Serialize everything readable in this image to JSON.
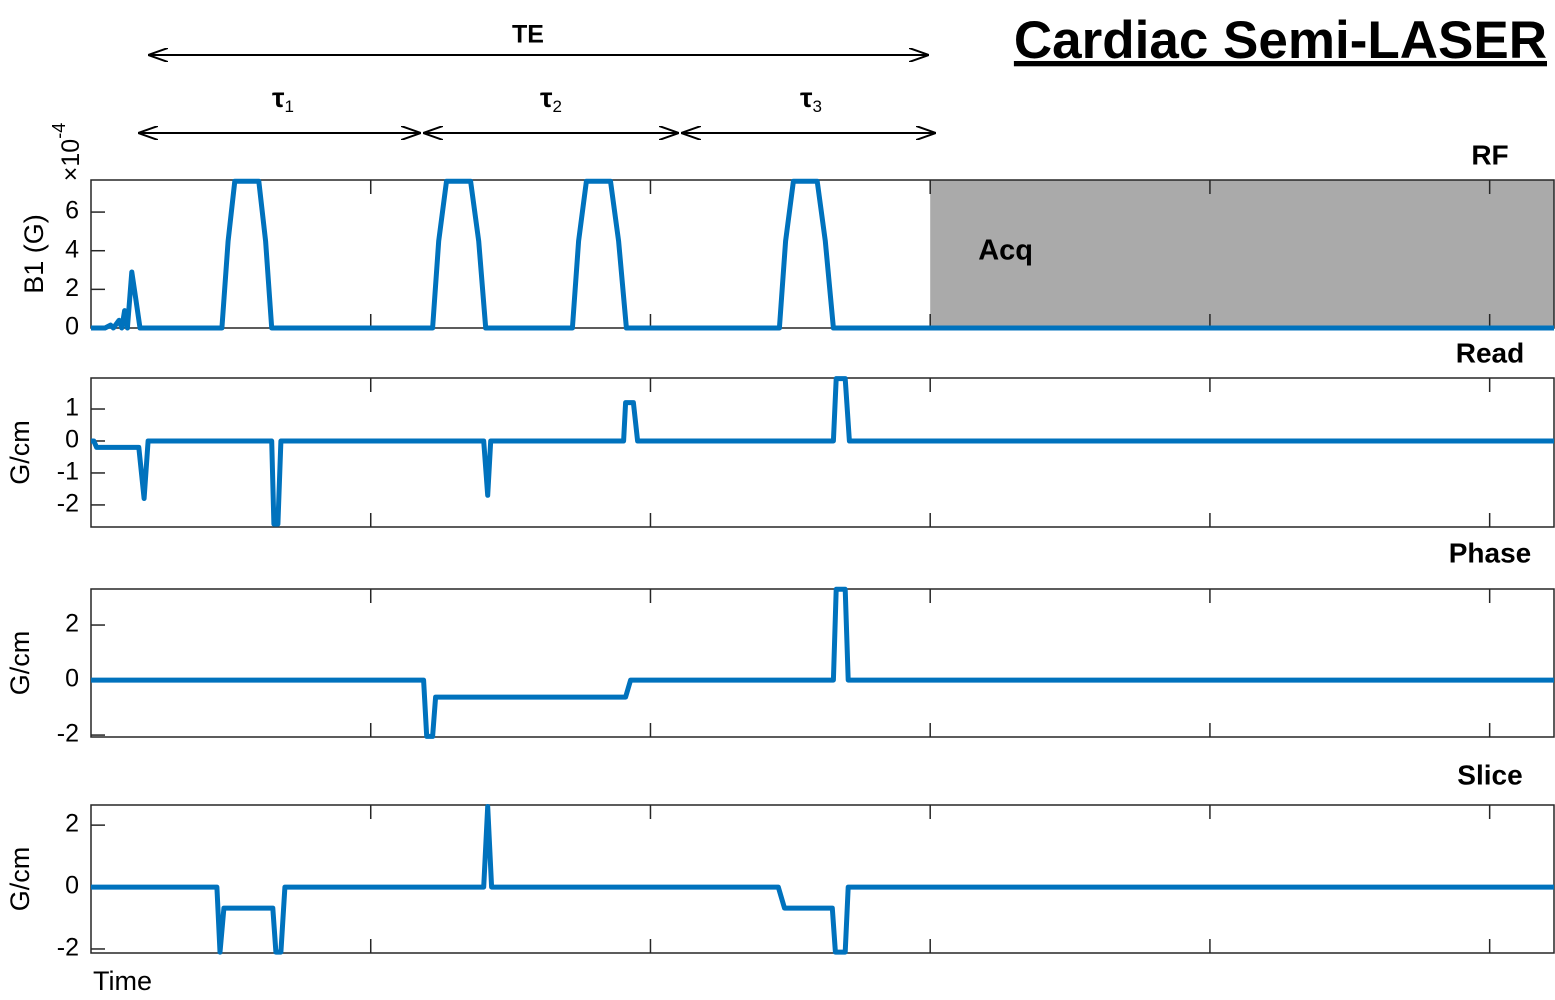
{
  "chart_data": [
    {
      "type": "line",
      "title": "Cardiac Semi-LASER",
      "te_label": "TE",
      "intervals": [
        {
          "symbol": "τ",
          "subscript": "1"
        },
        {
          "symbol": "τ",
          "subscript": "2"
        },
        {
          "symbol": "τ",
          "subscript": "3"
        }
      ],
      "panel_label": "RF",
      "ylabel": "B1 (G)",
      "y_multiplier": {
        "base": "×10",
        "exponent": "-4"
      },
      "span": {
        "label": "Acq",
        "start": 3,
        "end": 5.23,
        "color": "#aaaaaa"
      },
      "color": "#0072bd",
      "x": [
        0,
        0.05,
        0.07,
        0.08,
        0.1,
        0.11,
        0.12,
        0.13,
        0.146,
        0.16,
        0.175,
        0.468,
        0.49,
        0.514,
        0.6,
        0.624,
        0.646,
        1.221,
        1.243,
        1.271,
        1.357,
        1.386,
        1.411,
        1.721,
        1.743,
        1.771,
        1.857,
        1.886,
        1.914,
        2.461,
        2.483,
        2.511,
        2.596,
        2.625,
        2.654,
        5.23
      ],
      "values": [
        0,
        0,
        0.15,
        0,
        0.4,
        0,
        0.9,
        0,
        2.9,
        1.5,
        0,
        0,
        4.5,
        7.6,
        7.6,
        4.5,
        0,
        0,
        4.5,
        7.6,
        7.6,
        4.5,
        0,
        0,
        4.5,
        7.6,
        7.6,
        4.5,
        0,
        0,
        4.5,
        7.6,
        7.6,
        4.5,
        0,
        0
      ],
      "xlim": [
        0,
        5.23
      ],
      "xticks": [
        1,
        2,
        3,
        4,
        5
      ],
      "ylim": [
        0,
        7.66
      ],
      "yticks": [
        0,
        2,
        4,
        6
      ]
    },
    {
      "type": "line",
      "panel_label": "Read",
      "ylabel": "G/cm",
      "color": "#0072bd",
      "x": [
        0,
        0.01,
        0.02,
        0.171,
        0.19,
        0.204,
        0.646,
        0.654,
        0.668,
        0.679,
        1.404,
        1.418,
        1.429,
        1.904,
        1.911,
        1.939,
        1.954,
        2.654,
        2.664,
        2.696,
        2.711,
        5.23
      ],
      "values": [
        0,
        0,
        -0.2,
        -0.2,
        -1.8,
        0,
        0,
        -2.6,
        -2.6,
        0,
        0,
        -1.7,
        0,
        0,
        1.2,
        1.2,
        0,
        0,
        1.95,
        1.95,
        0,
        0
      ],
      "xlim": [
        0,
        5.23
      ],
      "xticks": [
        1,
        2,
        3,
        4,
        5
      ],
      "ylim": [
        -2.69,
        1.97
      ],
      "yticks": [
        -2,
        -1,
        0,
        1
      ]
    },
    {
      "type": "line",
      "panel_label": "Phase",
      "ylabel": "G/cm",
      "color": "#0072bd",
      "x": [
        0,
        1.189,
        1.2,
        1.221,
        1.232,
        1.911,
        1.929,
        2.654,
        2.664,
        2.696,
        2.707,
        5.23
      ],
      "values": [
        0,
        0,
        -2.05,
        -2.05,
        -0.62,
        -0.62,
        0,
        0,
        3.3,
        3.3,
        0,
        0
      ],
      "xlim": [
        0,
        5.23
      ],
      "xticks": [
        1,
        2,
        3,
        4,
        5
      ],
      "ylim": [
        -2.07,
        3.31
      ],
      "yticks": [
        -2,
        0,
        2
      ]
    },
    {
      "type": "line",
      "panel_label": "Slice",
      "ylabel": "G/cm",
      "xlabel": "Time",
      "color": "#0072bd",
      "x": [
        0,
        0.45,
        0.461,
        0.475,
        0.65,
        0.661,
        0.679,
        0.693,
        1.404,
        1.418,
        1.432,
        2.457,
        2.479,
        2.65,
        2.661,
        2.696,
        2.707,
        5.23
      ],
      "values": [
        0,
        0,
        -2.1,
        -0.68,
        -0.68,
        -2.1,
        -2.1,
        0,
        0,
        2.6,
        0,
        0,
        -0.68,
        -0.68,
        -2.1,
        -2.1,
        0,
        0
      ],
      "xlim": [
        0,
        5.23
      ],
      "xticks": [
        1,
        2,
        3,
        4,
        5
      ],
      "ylim": [
        -2.13,
        2.65
      ],
      "yticks": [
        -2,
        0,
        2
      ]
    }
  ]
}
